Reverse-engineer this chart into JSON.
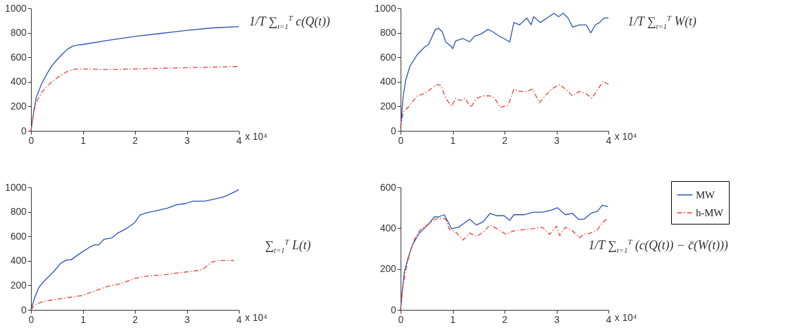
{
  "chart_data": [
    {
      "type": "line",
      "xlim": [
        0,
        4
      ],
      "xticks": [
        0,
        1,
        2,
        3,
        4
      ],
      "ylim": [
        0,
        1000
      ],
      "yticks": [
        0,
        200,
        400,
        600,
        800,
        1000
      ],
      "annotations": [
        "x 10⁴",
        "1/T ∑$_{t=1}$$^{T}$ c(Q(t))"
      ],
      "series": [
        {
          "color": "#2b50b5",
          "line_style": "solid",
          "x": [
            0,
            0.05,
            0.1,
            0.2,
            0.3,
            0.4,
            0.5,
            0.6,
            0.7,
            0.8,
            0.9,
            1.0,
            1.5,
            2,
            2.5,
            3,
            3.5,
            4
          ],
          "values": [
            0,
            150,
            270,
            380,
            460,
            530,
            580,
            625,
            665,
            690,
            700,
            705,
            740,
            770,
            795,
            820,
            840,
            850
          ]
        },
        {
          "color": "#e8412f",
          "line_style": "dashed",
          "x": [
            0,
            0.05,
            0.1,
            0.2,
            0.3,
            0.4,
            0.5,
            0.6,
            0.7,
            0.8,
            0.9,
            1.0,
            1.5,
            2,
            2.5,
            3,
            3.5,
            4
          ],
          "values": [
            0,
            150,
            230,
            310,
            360,
            400,
            430,
            460,
            485,
            500,
            505,
            505,
            500,
            505,
            510,
            515,
            520,
            525
          ]
        }
      ]
    },
    {
      "type": "line",
      "xlim": [
        0,
        4
      ],
      "xticks": [
        0,
        1,
        2,
        3,
        4
      ],
      "ylim": [
        0,
        1000
      ],
      "yticks": [
        0,
        200,
        400,
        600,
        800,
        1000
      ],
      "legend": "bottom right",
      "annotations": [
        "x 10⁴",
        "1/T ∑$_{t=1}$$^{T}$ W(t)"
      ],
      "series": [
        {
          "name": "MW",
          "color": "#2b50b5",
          "line_style": "solid",
          "x": [
            0,
            0.05,
            0.1,
            0.18,
            0.32,
            0.45,
            0.54,
            0.67,
            0.73,
            0.8,
            0.87,
            0.98,
            1.0,
            1.06,
            1.2,
            1.33,
            1.42,
            1.55,
            1.68,
            1.77,
            1.9,
            1.99,
            2.1,
            2.18,
            2.29,
            2.43,
            2.51,
            2.56,
            2.69,
            2.82,
            2.95,
            3.04,
            3.13,
            3.22,
            3.31,
            3.44,
            3.57,
            3.66,
            3.75,
            3.83,
            3.92,
            4
          ],
          "values": [
            22,
            285,
            416,
            528,
            622,
            678,
            706,
            828,
            837,
            809,
            725,
            687,
            669,
            734,
            753,
            725,
            772,
            790,
            828,
            809,
            772,
            753,
            725,
            884,
            865,
            921,
            865,
            931,
            884,
            921,
            959,
            931,
            959,
            921,
            846,
            865,
            865,
            800,
            865,
            884,
            921,
            921
          ]
        },
        {
          "name": "h-MW",
          "color": "#e8412f",
          "line_style": "dashed",
          "x": [
            0,
            0.05,
            0.14,
            0.32,
            0.45,
            0.58,
            0.71,
            0.78,
            0.87,
            0.98,
            1.06,
            1.15,
            1.24,
            1.35,
            1.46,
            1.59,
            1.72,
            1.81,
            1.92,
            2.07,
            2.18,
            2.29,
            2.43,
            2.54,
            2.67,
            2.78,
            2.91,
            3.06,
            3.17,
            3.31,
            3.44,
            3.57,
            3.68,
            3.77,
            3.9,
            4
          ],
          "values": [
            22,
            154,
            191,
            285,
            303,
            341,
            378,
            369,
            266,
            200,
            266,
            247,
            266,
            191,
            266,
            285,
            285,
            266,
            191,
            210,
            341,
            322,
            322,
            341,
            228,
            285,
            341,
            378,
            341,
            285,
            322,
            303,
            266,
            322,
            406,
            378
          ]
        }
      ]
    },
    {
      "type": "line",
      "xlim": [
        0,
        4
      ],
      "xticks": [
        0,
        1,
        2,
        3,
        4
      ],
      "ylim": [
        0,
        1000
      ],
      "yticks": [
        0,
        200,
        400,
        600,
        800,
        1000
      ],
      "annotations": [
        "x 10⁴",
        "∑$_{t=1}$$^{T}$ L(t)"
      ],
      "series": [
        {
          "color": "#2b50b5",
          "line_style": "solid",
          "x": [
            0,
            0.07,
            0.15,
            0.24,
            0.33,
            0.46,
            0.57,
            0.69,
            0.77,
            0.86,
            0.99,
            1.13,
            1.22,
            1.3,
            1.41,
            1.55,
            1.66,
            1.83,
            1.99,
            2.1,
            2.23,
            2.45,
            2.63,
            2.81,
            2.98,
            3.12,
            3.34,
            3.56,
            3.73,
            3.87,
            4
          ],
          "values": [
            0,
            98,
            182,
            229,
            267,
            323,
            380,
            408,
            408,
            436,
            474,
            511,
            530,
            530,
            577,
            586,
            624,
            662,
            709,
            774,
            793,
            812,
            831,
            859,
            868,
            887,
            887,
            906,
            925,
            953,
            981
          ]
        },
        {
          "color": "#e8412f",
          "line_style": "dashed",
          "x": [
            0,
            0.07,
            0.24,
            0.51,
            0.82,
            0.99,
            1.22,
            1.48,
            1.7,
            2.01,
            2.23,
            2.54,
            2.9,
            3.25,
            3.34,
            3.47,
            3.6,
            3.91
          ],
          "values": [
            0,
            41,
            70,
            88,
            107,
            117,
            154,
            192,
            211,
            258,
            276,
            286,
            305,
            323,
            342,
            389,
            402,
            402
          ]
        }
      ]
    },
    {
      "type": "line",
      "xlim": [
        0,
        4
      ],
      "xticks": [
        0,
        1,
        2,
        3,
        4
      ],
      "ylim": [
        0,
        600
      ],
      "yticks": [
        0,
        200,
        400,
        600
      ],
      "annotations": [
        "x 10⁴",
        "1/T ∑$_{t=1}$$^{T}$ (c(Q(t)) − c̄(W(t)))"
      ],
      "series": [
        {
          "color": "#2b50b5",
          "line_style": "solid",
          "x": [
            0,
            0.03,
            0.07,
            0.14,
            0.23,
            0.36,
            0.45,
            0.54,
            0.65,
            0.73,
            0.84,
            0.91,
            0.98,
            1.11,
            1.24,
            1.33,
            1.46,
            1.59,
            1.72,
            1.85,
            1.99,
            2.1,
            2.18,
            2.38,
            2.56,
            2.73,
            2.91,
            3.02,
            3.17,
            3.31,
            3.42,
            3.53,
            3.66,
            3.79,
            3.88,
            3.99
          ],
          "values": [
            0,
            82,
            183,
            251,
            319,
            376,
            398,
            421,
            455,
            455,
            466,
            432,
            398,
            404,
            427,
            444,
            415,
            432,
            472,
            461,
            461,
            438,
            466,
            466,
            478,
            478,
            489,
            500,
            466,
            472,
            444,
            444,
            472,
            483,
            512,
            506
          ]
        },
        {
          "color": "#e8412f",
          "line_style": "dashed",
          "x": [
            0,
            0.03,
            0.1,
            0.18,
            0.29,
            0.38,
            0.51,
            0.67,
            0.8,
            0.87,
            0.93,
            1.06,
            1.2,
            1.33,
            1.46,
            1.59,
            1.72,
            1.85,
            2.03,
            2.18,
            2.38,
            2.56,
            2.73,
            2.87,
            3.0,
            3.06,
            3.17,
            3.31,
            3.44,
            3.53,
            3.66,
            3.79,
            3.88,
            3.99
          ],
          "values": [
            0,
            93,
            195,
            285,
            359,
            393,
            415,
            444,
            449,
            444,
            398,
            381,
            342,
            376,
            359,
            381,
            415,
            398,
            370,
            387,
            393,
            398,
            404,
            370,
            410,
            364,
            404,
            387,
            353,
            370,
            376,
            393,
            427,
            449
          ]
        }
      ]
    }
  ]
}
